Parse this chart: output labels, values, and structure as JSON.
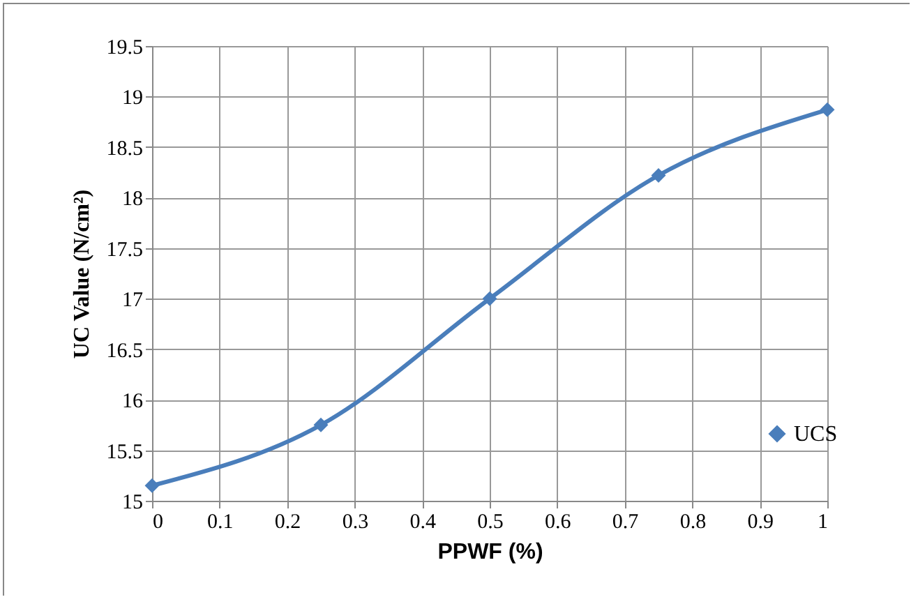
{
  "chart_data": {
    "type": "line",
    "xlabel": "PPWF (%)",
    "ylabel": "UC Value (N/cm²)",
    "x": [
      0,
      0.25,
      0.5,
      0.75,
      1
    ],
    "series": [
      {
        "name": "UCS",
        "color": "#4a7ebb",
        "values": [
          15.15,
          15.75,
          17.0,
          18.22,
          18.87
        ]
      }
    ],
    "xlim": [
      0,
      1
    ],
    "xticks": [
      0,
      0.1,
      0.2,
      0.3,
      0.4,
      0.5,
      0.6,
      0.7,
      0.8,
      0.9,
      1
    ],
    "ylim": [
      15,
      19.5
    ],
    "yticks": [
      15,
      15.5,
      16,
      16.5,
      17,
      17.5,
      18,
      18.5,
      19,
      19.5
    ],
    "grid": true,
    "legend": "right",
    "marker": "diamond",
    "line_style": "solid"
  }
}
